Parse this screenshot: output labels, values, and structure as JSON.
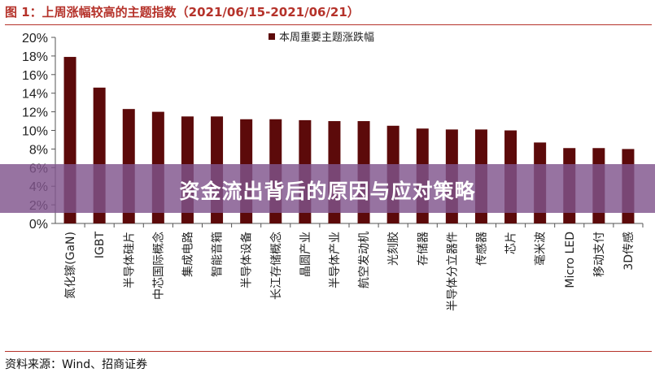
{
  "figure": {
    "title": "图 1：上周涨幅较高的主题指数（2021/06/15-2021/06/21）",
    "source": "资料来源：Wind、招商证券"
  },
  "banner": {
    "text": "资金流出背后的原因与应对策略"
  },
  "colors": {
    "bar": "#5c0a0a",
    "title": "#b5322a",
    "banner_bg": "#80548c"
  },
  "chart_data": {
    "type": "bar",
    "categories": [
      "氮化镓(GaN)",
      "IGBT",
      "半导体硅片",
      "中芯国际概念",
      "集成电路",
      "智能音箱",
      "半导体设备",
      "长江存储概念",
      "晶圆产业",
      "半导体产业",
      "航空发动机",
      "光刻胶",
      "存储器",
      "半导体分立器件",
      "传感器",
      "芯片",
      "毫米波",
      "Micro LED",
      "移动支付",
      "3D传感"
    ],
    "series": [
      {
        "name": "本周重要主题涨跌幅",
        "values": [
          17.9,
          14.6,
          12.3,
          12.0,
          11.5,
          11.5,
          11.2,
          11.2,
          11.1,
          11.0,
          11.0,
          10.5,
          10.2,
          10.1,
          10.1,
          10.0,
          8.7,
          8.1,
          8.1,
          8.0
        ]
      }
    ],
    "yticks": [
      "0%",
      "2%",
      "4%",
      "6%",
      "8%",
      "10%",
      "12%",
      "14%",
      "16%",
      "18%",
      "20%"
    ],
    "ylim": [
      0,
      20
    ],
    "grid": false,
    "legend_position": "top-center"
  }
}
